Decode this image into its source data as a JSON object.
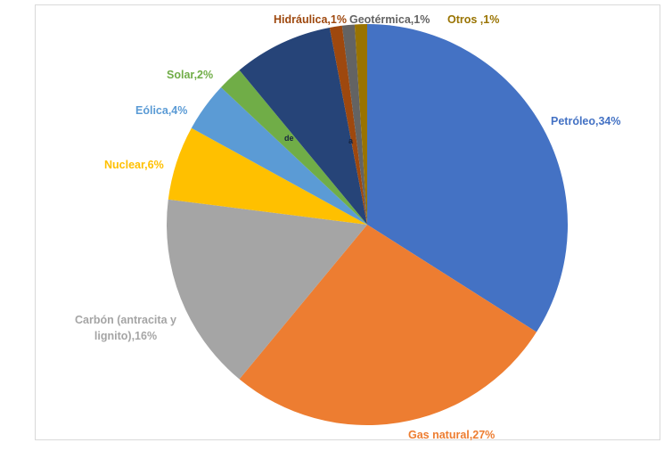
{
  "chart_data": {
    "type": "pie",
    "title": "",
    "unit": "%",
    "legend": "none",
    "label_style": "category name + percent, label color matches slice color, labels outside pie",
    "slices": [
      {
        "id": "petroleo",
        "label": "Petróleo",
        "value": 34,
        "display": "Petróleo,34%",
        "color": "#4472C4"
      },
      {
        "id": "gas-natural",
        "label": "Gas natural",
        "value": 27,
        "display": "Gas natural,27%",
        "color": "#ED7D31"
      },
      {
        "id": "carbon",
        "label": "Carbón (antracita y lignito)",
        "value": 16,
        "display": "Carbón (antracita y lignito),16%",
        "color": "#A5A5A5"
      },
      {
        "id": "nuclear",
        "label": "Nuclear",
        "value": 6,
        "display": "Nuclear,6%",
        "color": "#FFC000"
      },
      {
        "id": "eolica",
        "label": "Eólica",
        "value": 4,
        "display": "Eólica,4%",
        "color": "#5B9BD5"
      },
      {
        "id": "sin-etiqueta-visible",
        "label": "",
        "value": 8,
        "display": "",
        "color": "#264478",
        "partial_text": [
          "de",
          "a"
        ]
      },
      {
        "id": "solar",
        "label": "Solar",
        "value": 2,
        "display": "Solar,2%",
        "color": "#70AD47"
      },
      {
        "id": "hidraulica",
        "label": "Hidráulica",
        "value": 1,
        "display": "Hidráulica,1%",
        "color": "#9E480E"
      },
      {
        "id": "geotermica",
        "label": "Geotérmica",
        "value": 1,
        "display": "Geotérmica,1%",
        "color": "#636363"
      },
      {
        "id": "otros",
        "label": "Otros",
        "value": 1,
        "display": "Otros ,1%",
        "color": "#997300"
      }
    ],
    "draw_order_clockwise_from_top": [
      "petroleo",
      "gas-natural",
      "carbon",
      "nuclear",
      "eolica",
      "solar",
      "sin-etiqueta-visible",
      "hidraulica",
      "geotermica",
      "otros"
    ]
  }
}
